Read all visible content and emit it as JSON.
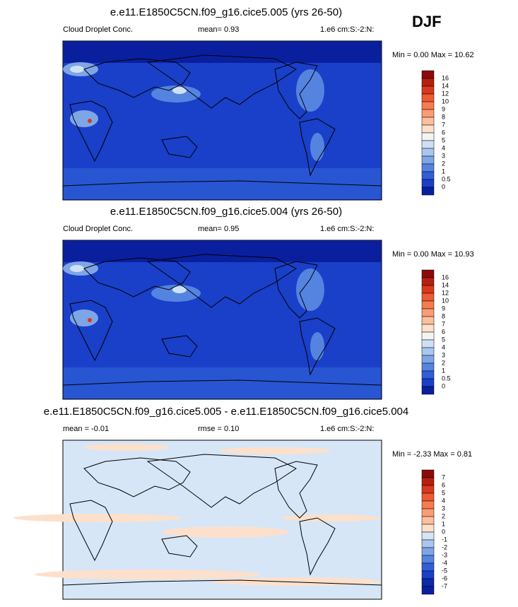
{
  "season": "DJF",
  "panels": [
    {
      "title": "e.e11.E1850C5CN.f09_g16.cice5.005 (yrs 26-50)",
      "left_label": "Cloud Droplet Conc.",
      "center_label": "mean=  0.93",
      "right_label": "1.e6 cm:S:-2:N:",
      "minmax": "Min =  0.00 Max =  10.62",
      "colorbar": {
        "labels": [
          16,
          14,
          12,
          10,
          9,
          8,
          7,
          6,
          5,
          4,
          3,
          2,
          1,
          0.5,
          0
        ],
        "colors": [
          "#8c0a0a",
          "#b5200e",
          "#d8391c",
          "#ee5a33",
          "#f67c4f",
          "#fb9c74",
          "#fcbf9c",
          "#fde0cb",
          "#f4f4f4",
          "#cfe0f5",
          "#a9c6ee",
          "#7ea6e6",
          "#5584e0",
          "#2f5fd6",
          "#1a3fc8",
          "#0a1f9e"
        ]
      }
    },
    {
      "title": "e.e11.E1850C5CN.f09_g16.cice5.004 (yrs 26-50)",
      "left_label": "Cloud Droplet Conc.",
      "center_label": "mean=  0.95",
      "right_label": "1.e6 cm:S:-2:N:",
      "minmax": "Min =  0.00 Max =  10.93",
      "colorbar": {
        "labels": [
          16,
          14,
          12,
          10,
          9,
          8,
          7,
          6,
          5,
          4,
          3,
          2,
          1,
          0.5,
          0
        ],
        "colors": [
          "#8c0a0a",
          "#b5200e",
          "#d8391c",
          "#ee5a33",
          "#f67c4f",
          "#fb9c74",
          "#fcbf9c",
          "#fde0cb",
          "#f4f4f4",
          "#cfe0f5",
          "#a9c6ee",
          "#7ea6e6",
          "#5584e0",
          "#2f5fd6",
          "#1a3fc8",
          "#0a1f9e"
        ]
      }
    },
    {
      "title": "e.e11.E1850C5CN.f09_g16.cice5.005 - e.e11.E1850C5CN.f09_g16.cice5.004",
      "left_label": "mean = -0.01",
      "center_label": "rmse = 0.10",
      "right_label": "1.e6 cm:S:-2:N:",
      "minmax": "Min = -2.33 Max =  0.81",
      "colorbar": {
        "labels": [
          7,
          6,
          5,
          4,
          3,
          2,
          1,
          0,
          -1,
          -2,
          -3,
          -4,
          -5,
          -6,
          -7
        ],
        "colors": [
          "#8c0a0a",
          "#b5200e",
          "#d8391c",
          "#ee5a33",
          "#f67c4f",
          "#fb9c74",
          "#fcbf9c",
          "#fde0cb",
          "#d6e6f7",
          "#a9c6ee",
          "#7ea6e6",
          "#5584e0",
          "#2f5fd6",
          "#1a3fc8",
          "#0a2aa8",
          "#0a1f9e"
        ]
      }
    }
  ]
}
